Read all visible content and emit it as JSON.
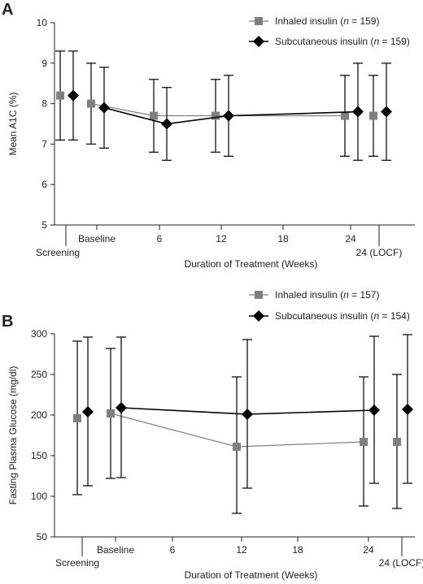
{
  "chart_data": [
    {
      "panel": "A",
      "type": "line",
      "xlabel": "Duration of Treatment (Weeks)",
      "ylabel": "Mean A1C  (%)",
      "ylim": [
        5,
        10
      ],
      "yticks": [
        5,
        6,
        7,
        8,
        9,
        10
      ],
      "xticks": [
        "Baseline",
        "6",
        "12",
        "18",
        "24",
        "24 (LOCF)"
      ],
      "x_extra_label": "Screening",
      "grid": false,
      "legend_placement": "top-right",
      "series": [
        {
          "name": "Inhaled insulin",
          "n": "159",
          "marker": "square",
          "color": "#808080",
          "points": [
            {
              "x": "Screening",
              "y": 8.2,
              "err_low": 7.1,
              "err_high": 9.3,
              "in_line": false
            },
            {
              "x": "Baseline",
              "y": 8.0,
              "err_low": 7.0,
              "err_high": 9.0,
              "in_line": true
            },
            {
              "x": "6",
              "y": 7.7,
              "err_low": 6.8,
              "err_high": 8.6,
              "in_line": true
            },
            {
              "x": "12",
              "y": 7.7,
              "err_low": 6.8,
              "err_high": 8.6,
              "in_line": true
            },
            {
              "x": "24",
              "y": 7.7,
              "err_low": 6.7,
              "err_high": 8.7,
              "in_line": true
            },
            {
              "x": "24 (LOCF)",
              "y": 7.7,
              "err_low": 6.7,
              "err_high": 8.7,
              "in_line": false
            }
          ]
        },
        {
          "name": "Subcutaneous insulin",
          "n": "159",
          "marker": "diamond",
          "color": "#000000",
          "points": [
            {
              "x": "Screening",
              "y": 8.2,
              "err_low": 7.1,
              "err_high": 9.3,
              "in_line": false
            },
            {
              "x": "Baseline",
              "y": 7.9,
              "err_low": 6.9,
              "err_high": 8.9,
              "in_line": true
            },
            {
              "x": "6",
              "y": 7.5,
              "err_low": 6.6,
              "err_high": 8.4,
              "in_line": true
            },
            {
              "x": "12",
              "y": 7.7,
              "err_low": 6.7,
              "err_high": 8.7,
              "in_line": true
            },
            {
              "x": "24",
              "y": 7.8,
              "err_low": 6.6,
              "err_high": 9.0,
              "in_line": true
            },
            {
              "x": "24 (LOCF)",
              "y": 7.8,
              "err_low": 6.6,
              "err_high": 9.0,
              "in_line": false
            }
          ]
        }
      ]
    },
    {
      "panel": "B",
      "type": "line",
      "xlabel": "Duration of Treatment (Weeks)",
      "ylabel": "Fasting Plasma Glucose (mg/dl)",
      "ylim": [
        50,
        300
      ],
      "yticks": [
        50,
        100,
        150,
        200,
        250,
        300
      ],
      "xticks": [
        "Baseline",
        "6",
        "12",
        "18",
        "24",
        "24 (LOCF)"
      ],
      "x_extra_label": "Screening",
      "grid": false,
      "legend_placement": "top-right",
      "series": [
        {
          "name": "Inhaled insulin",
          "n": "157",
          "marker": "square",
          "color": "#808080",
          "points": [
            {
              "x": "Screening",
              "y": 196,
              "err_low": 102,
              "err_high": 291,
              "in_line": false
            },
            {
              "x": "Baseline",
              "y": 202,
              "err_low": 122,
              "err_high": 282,
              "in_line": true
            },
            {
              "x": "12",
              "y": 161,
              "err_low": 79,
              "err_high": 247,
              "in_line": true
            },
            {
              "x": "24",
              "y": 167,
              "err_low": 88,
              "err_high": 247,
              "in_line": true
            },
            {
              "x": "24 (LOCF)",
              "y": 167,
              "err_low": 85,
              "err_high": 250,
              "in_line": false
            }
          ]
        },
        {
          "name": "Subcutaneous insulin",
          "n": "154",
          "marker": "diamond",
          "color": "#000000",
          "points": [
            {
              "x": "Screening",
              "y": 204,
              "err_low": 113,
              "err_high": 296,
              "in_line": false
            },
            {
              "x": "Baseline",
              "y": 209,
              "err_low": 123,
              "err_high": 296,
              "in_line": true
            },
            {
              "x": "12",
              "y": 201,
              "err_low": 110,
              "err_high": 293,
              "in_line": true
            },
            {
              "x": "24",
              "y": 206,
              "err_low": 116,
              "err_high": 297,
              "in_line": true
            },
            {
              "x": "24 (LOCF)",
              "y": 207,
              "err_low": 116,
              "err_high": 299,
              "in_line": false
            }
          ]
        }
      ]
    }
  ]
}
